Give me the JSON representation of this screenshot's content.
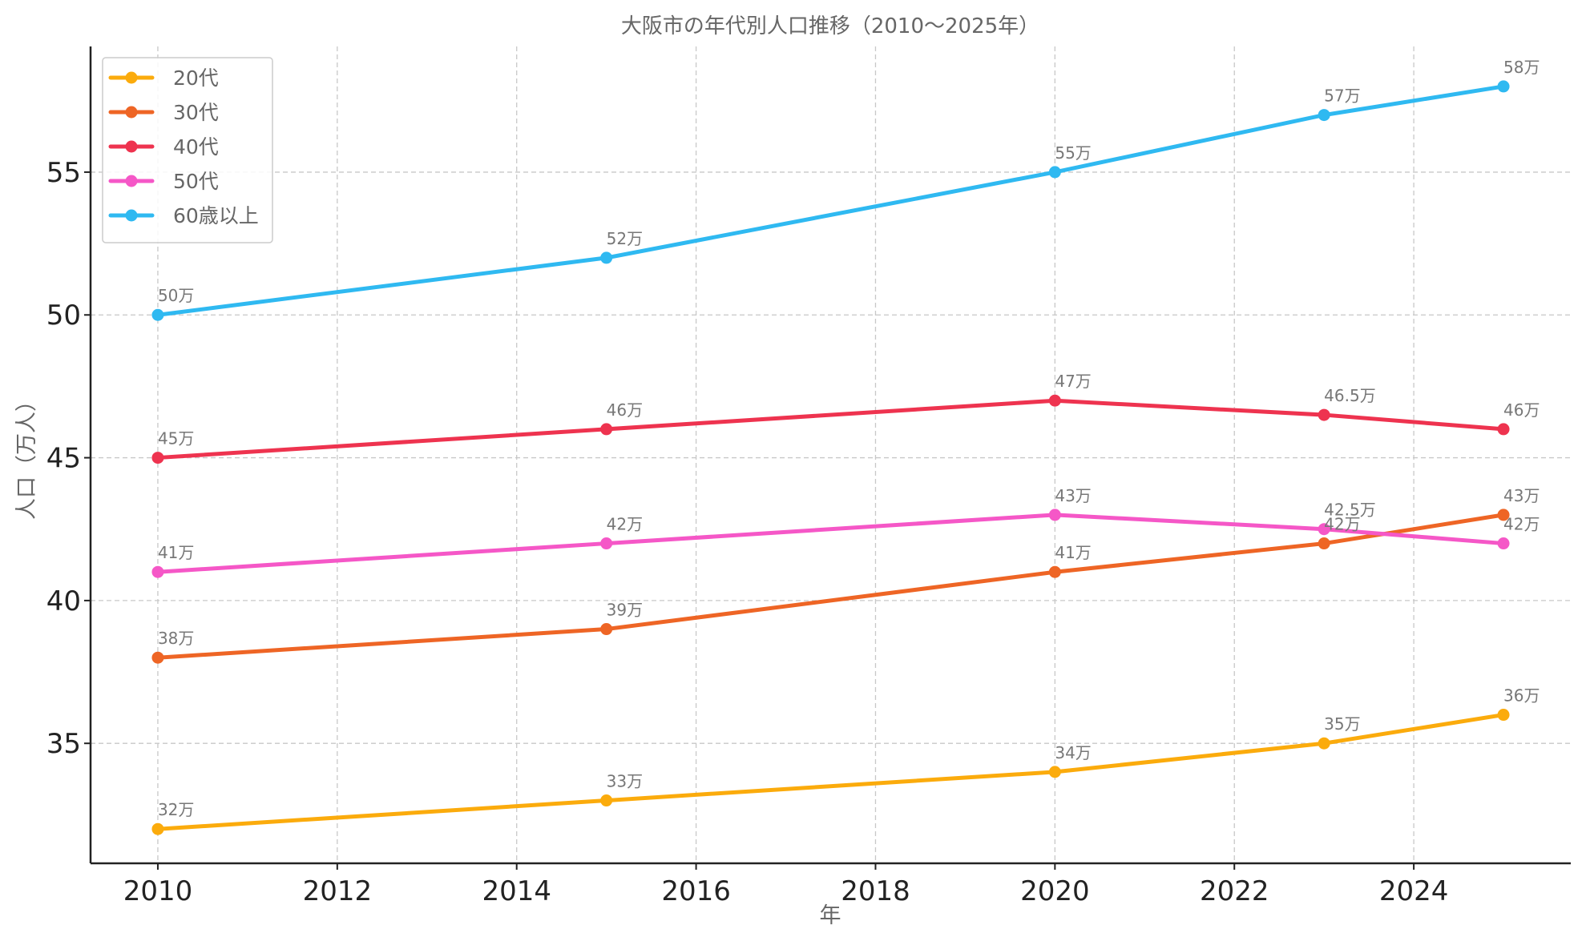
{
  "chart_data": {
    "type": "line",
    "title": "大阪市の年代別人口推移（2010〜2025年）",
    "xlabel": "年",
    "ylabel": "人口（万人）",
    "x": [
      2010,
      2015,
      2020,
      2023,
      2025
    ],
    "xlim": [
      2009.25,
      2025.75
    ],
    "ylim": [
      30.8,
      59.4
    ],
    "xticks": [
      2010,
      2012,
      2014,
      2016,
      2018,
      2020,
      2022,
      2024
    ],
    "yticks": [
      35,
      40,
      45,
      50,
      55
    ],
    "xtick_labels": [
      "2010",
      "2012",
      "2014",
      "2016",
      "2018",
      "2020",
      "2022",
      "2024"
    ],
    "ytick_labels": [
      "35",
      "40",
      "45",
      "50",
      "55"
    ],
    "grid": true,
    "legend_position": "top-left",
    "series": [
      {
        "name": "20代",
        "color": "#fbab0c",
        "values": [
          32,
          33,
          34,
          35,
          36
        ],
        "labels": [
          "32万",
          "33万",
          "34万",
          "35万",
          "36万"
        ]
      },
      {
        "name": "30代",
        "color": "#ee6525",
        "values": [
          38,
          39,
          41,
          42,
          43
        ],
        "labels": [
          "38万",
          "39万",
          "41万",
          "42万",
          "43万"
        ]
      },
      {
        "name": "40代",
        "color": "#ee334f",
        "values": [
          45,
          46,
          47,
          46.5,
          46
        ],
        "labels": [
          "45万",
          "46万",
          "47万",
          "46.5万",
          "46万"
        ]
      },
      {
        "name": "50代",
        "color": "#f557c7",
        "values": [
          41,
          42,
          43,
          42.5,
          42
        ],
        "labels": [
          "41万",
          "42万",
          "43万",
          "42.5万",
          "42万"
        ]
      },
      {
        "name": "60歳以上",
        "color": "#2fb9f1",
        "values": [
          50,
          52,
          55,
          57,
          58
        ],
        "labels": [
          "50万",
          "52万",
          "55万",
          "57万",
          "58万"
        ]
      }
    ]
  }
}
